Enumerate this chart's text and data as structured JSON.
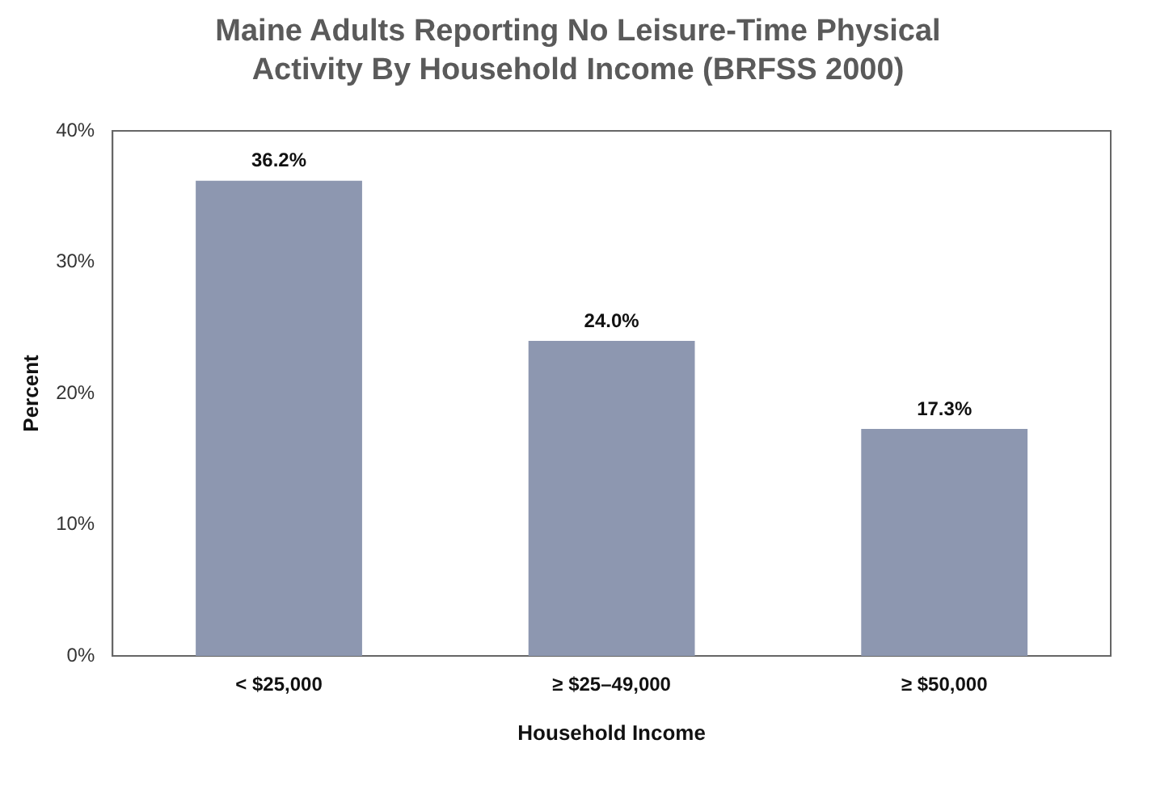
{
  "chart_data": {
    "type": "bar",
    "title": "Maine Adults Reporting No Leisure-Time Physical Activity By Household Income (BRFSS 2000)",
    "xlabel": "Household Income",
    "ylabel": "Percent",
    "categories": [
      "< $25,000",
      "≥ $25–49,000",
      "≥ $50,000"
    ],
    "values": [
      36.2,
      24.0,
      17.3
    ],
    "value_labels": [
      "36.2%",
      "24.0%",
      "17.3%"
    ],
    "color": "#8d97b0",
    "ylim": [
      0,
      40
    ],
    "yticks": [
      {
        "value": 0,
        "label": "0%"
      },
      {
        "value": 10,
        "label": "10%"
      },
      {
        "value": 20,
        "label": "20%"
      },
      {
        "value": 30,
        "label": "30%"
      },
      {
        "value": 40,
        "label": "40%"
      }
    ],
    "grid": false,
    "legend": false
  }
}
